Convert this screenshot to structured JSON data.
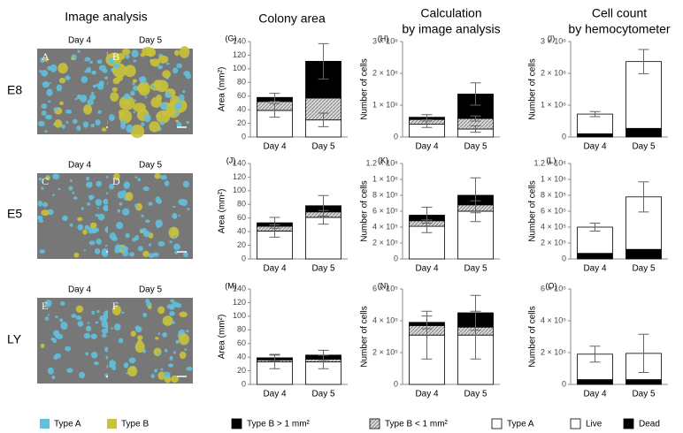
{
  "figure": {
    "title": "Image analysis",
    "rows": [
      "E8",
      "E5",
      "LY"
    ],
    "panels": [
      {
        "letter": "A",
        "day": "Day 4"
      },
      {
        "letter": "B",
        "day": "Day 5"
      },
      {
        "letter": "C",
        "day": "Day 4"
      },
      {
        "letter": "D",
        "day": "Day 5"
      },
      {
        "letter": "E",
        "day": "Day 4"
      },
      {
        "letter": "F",
        "day": "Day 5"
      }
    ],
    "column_titles": [
      [
        "Colony area"
      ],
      [
        "Calculation",
        "by image analysis"
      ],
      [
        "Cell count",
        "by hemocytometer"
      ]
    ],
    "image_legend": [
      {
        "label": "Type A",
        "color": "#62c0dc"
      },
      {
        "label": "Type B",
        "color": "#c9c23a"
      }
    ]
  },
  "chart_data": [
    {
      "type": "bar",
      "stacked": true,
      "panel": "(G)",
      "ylabel": "Area (mm²)",
      "categories": [
        "Day 4",
        "Day 5"
      ],
      "ylim": [
        0,
        140
      ],
      "yticks": [
        0,
        20,
        40,
        60,
        80,
        100,
        120,
        140
      ],
      "series": [
        {
          "name": "Type A",
          "color": "#ffffff",
          "values": [
            39,
            25
          ],
          "errors": [
            10,
            10
          ]
        },
        {
          "name": "Type B < 1 mm²",
          "color": "#c8c8c8",
          "pattern": "hatch",
          "values": [
            13,
            32
          ]
        },
        {
          "name": "Type B > 1 mm²",
          "color": "#000000",
          "values": [
            6,
            54
          ],
          "errors": [
            6,
            26
          ]
        }
      ]
    },
    {
      "type": "bar",
      "stacked": true,
      "panel": "(H)",
      "ylabel": "Number of cells",
      "categories": [
        "Day 4",
        "Day 5"
      ],
      "ylim": [
        0,
        3000000
      ],
      "yticks": [
        0,
        {
          "value": 1000000,
          "label": "1 × 10⁶"
        },
        {
          "value": 2000000,
          "label": "2 × 10⁶"
        },
        {
          "value": 3000000,
          "label": "3 × 10⁶"
        }
      ],
      "series": [
        {
          "color": "#ffffff",
          "values": [
            400000,
            250000
          ],
          "errors": [
            100000,
            100000
          ]
        },
        {
          "color": "#c8c8c8",
          "pattern": "hatch",
          "values": [
            150000,
            330000
          ],
          "errors": [
            null,
            80000
          ]
        },
        {
          "color": "#000000",
          "values": [
            70000,
            770000
          ],
          "errors": [
            80000,
            350000
          ]
        }
      ]
    },
    {
      "type": "bar",
      "stacked": true,
      "panel": "(I)",
      "ylabel": "Number of cells",
      "categories": [
        "Day 4",
        "Day 5"
      ],
      "ylim": [
        0,
        3000000
      ],
      "yticks": [
        0,
        {
          "value": 1000000,
          "label": "1 × 10⁶"
        },
        {
          "value": 2000000,
          "label": "2 × 10⁶"
        },
        {
          "value": 3000000,
          "label": "3 × 10⁶"
        }
      ],
      "series": [
        {
          "name": "Dead",
          "color": "#000000",
          "values": [
            100000,
            270000
          ]
        },
        {
          "name": "Live",
          "color": "#ffffff",
          "values": [
            620000,
            2100000
          ],
          "errors": [
            80000,
            380000
          ]
        }
      ]
    },
    {
      "type": "bar",
      "stacked": true,
      "panel": "(J)",
      "ylabel": "Area (mm²)",
      "categories": [
        "Day 4",
        "Day 5"
      ],
      "ylim": [
        0,
        140
      ],
      "yticks": [
        0,
        20,
        40,
        60,
        80,
        100,
        120,
        140
      ],
      "series": [
        {
          "color": "#ffffff",
          "values": [
            41,
            61
          ],
          "errors": [
            9,
            10
          ]
        },
        {
          "color": "#c8c8c8",
          "pattern": "hatch",
          "values": [
            7,
            8
          ]
        },
        {
          "color": "#000000",
          "values": [
            5,
            9
          ],
          "errors": [
            8,
            15
          ]
        }
      ]
    },
    {
      "type": "bar",
      "stacked": true,
      "panel": "(K)",
      "ylabel": "Number of cells",
      "categories": [
        "Day 4",
        "Day 5"
      ],
      "ylim": [
        0,
        1200000
      ],
      "yticks": [
        0,
        {
          "value": 200000,
          "label": "2 × 10⁵"
        },
        {
          "value": 400000,
          "label": "4 × 10⁵"
        },
        {
          "value": 600000,
          "label": "6 × 10⁵"
        },
        {
          "value": 800000,
          "label": "8 × 10⁵"
        },
        {
          "value": 1000000,
          "label": "1 × 10⁶"
        },
        {
          "value": 1200000,
          "label": "1.2 × 10⁶"
        }
      ],
      "series": [
        {
          "color": "#ffffff",
          "values": [
            410000,
            600000
          ],
          "errors": [
            80000,
            130000
          ]
        },
        {
          "color": "#c8c8c8",
          "pattern": "hatch",
          "values": [
            70000,
            80000
          ]
        },
        {
          "color": "#000000",
          "values": [
            70000,
            120000
          ],
          "errors": [
            100000,
            220000
          ]
        }
      ]
    },
    {
      "type": "bar",
      "stacked": true,
      "panel": "(L)",
      "ylabel": "Number of cells",
      "categories": [
        "Day 4",
        "Day 5"
      ],
      "ylim": [
        0,
        1200000
      ],
      "yticks": [
        0,
        {
          "value": 200000,
          "label": "2 × 10⁵"
        },
        {
          "value": 400000,
          "label": "4 × 10⁵"
        },
        {
          "value": 600000,
          "label": "6 × 10⁵"
        },
        {
          "value": 800000,
          "label": "8 × 10⁵"
        },
        {
          "value": 1000000,
          "label": "1 × 10⁶"
        },
        {
          "value": 1200000,
          "label": "1.2 × 10⁶"
        }
      ],
      "series": [
        {
          "color": "#000000",
          "values": [
            70000,
            120000
          ]
        },
        {
          "color": "#ffffff",
          "values": [
            330000,
            660000
          ],
          "errors": [
            50000,
            190000
          ]
        }
      ]
    },
    {
      "type": "bar",
      "stacked": true,
      "panel": "(M)",
      "ylabel": "Area (mm²)",
      "categories": [
        "Day 4",
        "Day 5"
      ],
      "ylim": [
        0,
        140
      ],
      "yticks": [
        0,
        20,
        40,
        60,
        80,
        100,
        120,
        140
      ],
      "series": [
        {
          "color": "#ffffff",
          "values": [
            33,
            33
          ],
          "errors": [
            10,
            10
          ]
        },
        {
          "color": "#c8c8c8",
          "pattern": "hatch",
          "values": [
            3,
            4
          ]
        },
        {
          "color": "#000000",
          "values": [
            3,
            6
          ],
          "errors": [
            5,
            7
          ]
        }
      ]
    },
    {
      "type": "bar",
      "stacked": true,
      "panel": "(N)",
      "ylabel": "Number of cells",
      "categories": [
        "Day 4",
        "Day 5"
      ],
      "ylim": [
        0,
        600000
      ],
      "yticks": [
        0,
        {
          "value": 200000,
          "label": "2 × 10⁵"
        },
        {
          "value": 400000,
          "label": "4 × 10⁵"
        },
        {
          "value": 600000,
          "label": "6 × 10⁵"
        }
      ],
      "series": [
        {
          "color": "#ffffff",
          "values": [
            310000,
            310000
          ],
          "errors": [
            150000,
            150000
          ]
        },
        {
          "color": "#c8c8c8",
          "pattern": "hatch",
          "values": [
            60000,
            50000
          ]
        },
        {
          "color": "#000000",
          "values": [
            20000,
            90000
          ],
          "errors": [
            40000,
            110000
          ]
        }
      ]
    },
    {
      "type": "bar",
      "stacked": true,
      "panel": "(O)",
      "ylabel": "Number of cells",
      "categories": [
        "Day 4",
        "Day 5"
      ],
      "ylim": [
        0,
        600000
      ],
      "yticks": [
        0,
        {
          "value": 200000,
          "label": "2 × 10⁵"
        },
        {
          "value": 400000,
          "label": "4 × 10⁵"
        },
        {
          "value": 600000,
          "label": "6 × 10⁵"
        }
      ],
      "series": [
        {
          "color": "#000000",
          "values": [
            30000,
            30000
          ]
        },
        {
          "color": "#ffffff",
          "values": [
            160000,
            165000
          ],
          "errors": [
            50000,
            120000
          ]
        }
      ]
    }
  ]
}
